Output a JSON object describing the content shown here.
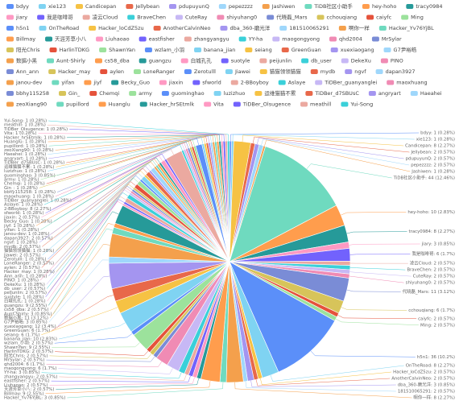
{
  "chart_data": {
    "type": "pie",
    "categories": [
      "bdyy",
      "xie123",
      "Candicepan",
      "Jellybean",
      "pdupuyunQ",
      "pepezzzz",
      "Jashiwen",
      "TiDB社区小助手",
      "hey-hoho",
      "tracy0984",
      "jiary",
      "我是咖啡哥",
      "凌云Cloud",
      "BraveChen",
      "CuteRay",
      "shiyuhang0",
      "代晓磊_Mars",
      "cchouqiang",
      "caiyfc",
      "Ming",
      "h5n1",
      "OnTheRoad",
      "Hacker_loCdZ5zu",
      "AnotherCalvinNeo",
      "dba_360-磨光洋",
      "181510065291",
      "啊你一样",
      "Hacker_Yv76YjBL",
      "Billmay",
      "天涯芳草小八",
      "Liuhaoao",
      "eastfisher",
      "zhangyangyu",
      "YY-ha",
      "maogongyong",
      "qhd2004",
      "MrSylar",
      "阳光Chris",
      "HarlinTDKG",
      "ShawnYan",
      "wzlam_小羽",
      "banana_jian",
      "seiang",
      "GreenGuan",
      "xuexiaogang",
      "G7尹裕皓",
      "数据小黑",
      "Aunt-Shirly",
      "cs58_dba",
      "guangzu",
      "白城孔孔",
      "suotyle",
      "peijunlin",
      "db_user",
      "DekeXu",
      "PINO",
      "Ann_ann",
      "Hacker_may",
      "aylen",
      "LoneRanger",
      "Zerotulll",
      "Jiawei",
      "猫猫领领猫猫",
      "mydb",
      "ngvf",
      "dapan3927",
      "janou-dev",
      "yifan",
      "jiyf",
      "Becky_Guo",
      "jiaxin",
      "sfworld",
      "2-BBoyboy",
      "Aslaye",
      "TiDBer_guanyanglei",
      "maoxhuang",
      "bbhy115258",
      "Gin_",
      "Chemqi",
      "army",
      "guominghao",
      "luzizhuo",
      "运维猫猫不累",
      "TiDBer_d7SBUsC",
      "angryart",
      "Haeahei",
      "zeoXiang90",
      "pupillord",
      "Huanglu",
      "Hacker_hrSEtmlk",
      "Vita",
      "TiDBer_Olsugence",
      "meathill",
      "Yui-Song"
    ],
    "values": [
      1,
      1,
      8,
      2,
      2,
      2,
      1,
      44,
      10,
      8,
      3,
      6,
      2,
      2,
      2,
      2,
      11,
      6,
      2,
      2,
      36,
      8,
      2,
      2,
      3,
      2,
      8,
      3,
      9,
      2,
      2,
      2,
      2,
      3,
      6,
      6,
      2,
      2,
      2,
      9,
      2,
      10,
      6,
      6,
      12,
      3,
      11,
      3,
      2,
      9,
      1,
      1,
      2,
      2,
      1,
      1,
      1,
      1,
      2,
      2,
      1,
      2,
      1,
      2,
      1,
      2,
      1,
      1,
      1,
      1,
      2,
      1,
      8,
      1,
      1,
      1,
      1,
      1,
      1,
      1,
      3,
      1,
      1,
      1,
      1,
      1,
      1,
      1,
      1,
      1,
      1,
      1,
      1,
      1
    ],
    "value_labels": [
      "bdyy: 1 (0.28%)",
      "xie123: 1 (0.28%)",
      "Candicepan: 8 (2.27%)",
      "Jellybean: 2 (0.57%)",
      "pdupuyunQ: 2 (0.57%)",
      "pepezzzz: 2 (0.57%)",
      "Jashiwen: 1 (0.28%)",
      "TiDB社区小助手: 44 (12.46%)",
      "hey-hoho: 10 (2.83%)",
      "tracy0984: 8 (2.27%)",
      "jiary: 3 (0.85%)",
      "我是咖啡哥: 6 (1.7%)",
      "凌云Cloud: 2 (0.57%)",
      "BraveChen: 2 (0.57%)",
      "CuteRay: 2 (0.57%)",
      "shiyuhang0: 2 (0.57%)",
      "代晓磊_Mars: 11 (3.12%)",
      "cchouqiang: 6 (1.7%)",
      "caiyfc: 2 (0.57%)",
      "Ming: 2 (0.57%)",
      "h5n1: 36 (10.2%)",
      "OnTheRoad: 8 (2.27%)",
      "Hacker_loCdZ5zu: 2 (0.57%)",
      "AnotherCalvinNeo: 2 (0.57%)",
      "dba_360-磨光洋: 3 (0.85%)",
      "181510065291: 2 (0.57%)",
      "啊你一样: 8 (2.27%)",
      "Hacker_Yv76YjBL: 3 (0.85%)",
      "Billmay: 9 (2.55%)",
      "天涯芳草小八: 2 (0.57%)",
      "Liuhaoao: 2 (0.57%)",
      "eastfisher: 2 (0.57%)",
      "zhangyangyu: 2 (0.57%)",
      "YY-ha: 3 (0.85%)",
      "maogongyong: 6 (1.7%)",
      "qhd2004: 6 (1.7%)",
      "MrSylar: 2 (0.57%)",
      "阳光Chris: 2 (0.57%)",
      "HarlinTDKG: 2 (0.57%)",
      "ShawnYan: 9 (2.55%)",
      "wzlam_小羽: 2 (0.57%)",
      "banana_jian: 10 (2.83%)",
      "seiang: 6 (1.7%)",
      "GreenGuan: 6 (1.7%)",
      "xuexiaogang: 12 (3.4%)",
      "G7尹裕皓: 3 (0.85%)",
      "数据小黑: 11 (3.12%)",
      "Aunt-Shirly: 3 (0.85%)",
      "cs58_dba: 2 (0.57%)",
      "guangzu: 9 (2.55%)",
      "白城孔孔: 1 (0.28%)",
      "suotyle: 1 (0.28%)",
      "peijunlin: 2 (0.57%)",
      "db_user: 2 (0.57%)",
      "DekeXu: 1 (0.28%)",
      "PINO: 1 (0.28%)",
      "Ann_ann: 1 (0.28%)",
      "Hacker_may: 1 (0.28%)",
      "aylen: 2 (0.57%)",
      "LoneRanger: 2 (0.57%)",
      "Zerotulll: 1 (0.28%)",
      "Jiawei: 2 (0.57%)",
      "猫猫领领猫猫: 1 (0.28%)",
      "mydb: 2 (0.57%)",
      "ngvf: 1 (0.28%)",
      "dapan3927: 2 (0.57%)",
      "janou-dev: 1 (0.28%)",
      "yifan: 1 (0.28%)",
      "jiyf: 1 (0.28%)",
      "Becky_Guo: 1 (0.28%)",
      "jiaxin: 2 (0.57%)",
      "sfworld: 1 (0.28%)",
      "2-BBoyboy: 8 (2.27%)",
      "Aslaye: 1 (0.28%)",
      "TiDBer_guanyanglei: 1 (0.28%)",
      "maoxhuang: 1 (0.28%)",
      "bbhy115258: 1 (0.28%)",
      "Gin_: 1 (0.28%)",
      "Chemqi: 1 (0.28%)",
      "army: 1 (0.28%)",
      "guominghao: 3 (0.85%)",
      "luzizhuo: 1 (0.28%)",
      "运维猫猫不累: 1 (0.28%)",
      "TiDBer_d7SBUsC: 1 (0.28%)",
      "angryart: 1 (0.28%)",
      "Haeahei: 1 (0.28%)",
      "zeoXiang90: 1 (0.28%)",
      "pupillord: 1 (0.28%)",
      "Huanglu: 1 (0.28%)",
      "Hacker_hrSEtmlk: 1 (0.28%)",
      "Vita: 1 (0.28%)",
      "TiDBer_Olsugence: 1 (0.28%)",
      "meathill: 1 (0.28%)",
      "Yui-Song: 1 (0.28%)"
    ],
    "colors": [
      "#5b8ff9",
      "#7fd3f2",
      "#f6c244",
      "#e8684a",
      "#a495f0",
      "#9fd7fb",
      "#f4a04c",
      "#6fdabf",
      "#ff9d4d",
      "#269a99",
      "#ff99c3",
      "#7262fd",
      "#eba9a0",
      "#3ad0d9",
      "#c7b8f5",
      "#f08bb4",
      "#7a8cd6",
      "#d7c45a",
      "#e5523b",
      "#9ce29c"
    ],
    "legend": "top"
  }
}
